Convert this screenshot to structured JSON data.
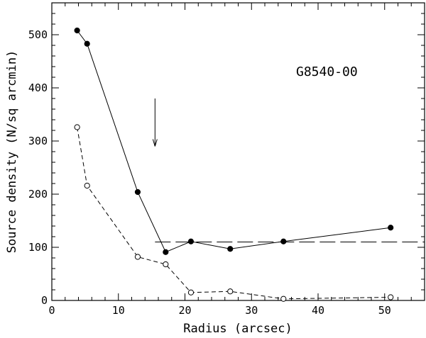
{
  "chart_data": {
    "type": "line",
    "title": "",
    "xlabel": "Radius (arcsec)",
    "ylabel": "Source density (N/sq arcmin)",
    "annotation": "G8540-00",
    "xlim": [
      0,
      56
    ],
    "ylim": [
      0,
      560
    ],
    "x_ticks": [
      0,
      10,
      20,
      30,
      40,
      50
    ],
    "y_ticks": [
      0,
      100,
      200,
      300,
      400,
      500
    ],
    "grid": false,
    "legend": "none",
    "series": [
      {
        "style": "solid-filled-circles",
        "x": [
          3.8,
          5.3,
          12.9,
          17.1,
          20.9,
          26.8,
          34.8,
          50.9
        ],
        "y": [
          508,
          483,
          204,
          91,
          111,
          97,
          111,
          137
        ]
      },
      {
        "style": "dashed-open-circles",
        "x": [
          3.8,
          5.3,
          12.9,
          17.1,
          20.9,
          26.8,
          34.8,
          50.9
        ],
        "y": [
          326,
          216,
          82,
          68,
          15,
          17,
          3,
          6
        ]
      }
    ],
    "reference_line": {
      "y": 110,
      "x_start": 15.5,
      "x_end": 56,
      "style": "long-dash"
    },
    "arrow": {
      "x": 15.5,
      "y_from": 380,
      "y_to": 290
    }
  }
}
